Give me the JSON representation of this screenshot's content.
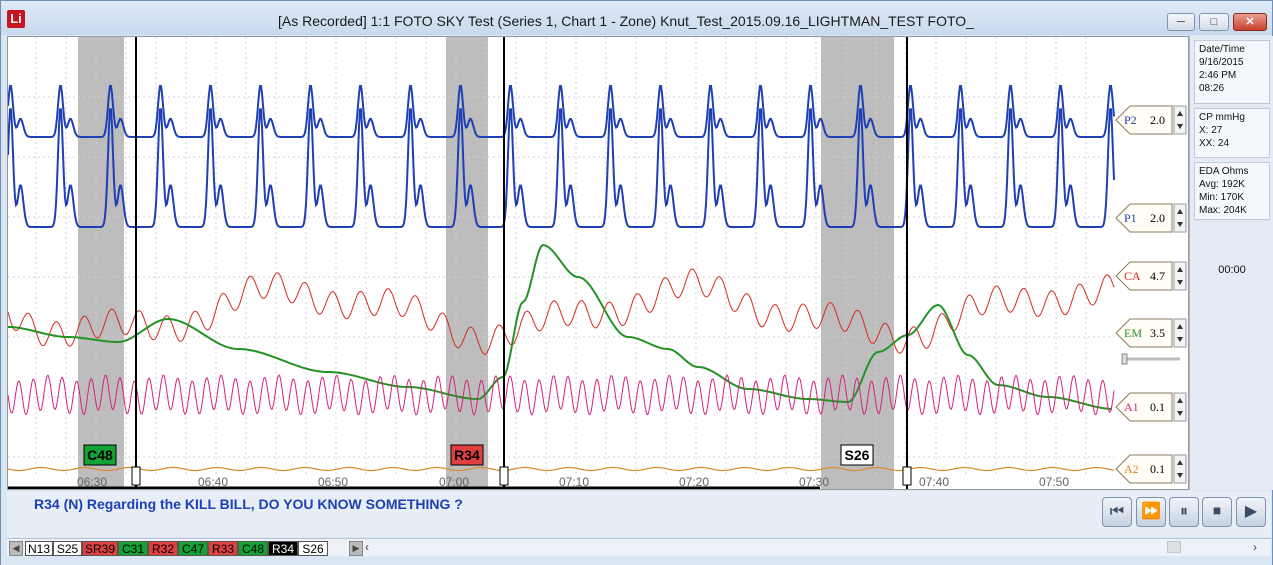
{
  "window": {
    "logo": "Li",
    "title": "[As Recorded] 1:1  FOTO SKY Test (Series 1, Chart 1 - Zone) Knut_Test_2015.09.16_LIGHTMAN_TEST FOTO_",
    "minimize_icon": "minimize-icon",
    "maximize_icon": "maximize-icon",
    "close_icon": "close-icon"
  },
  "time_axis": {
    "ticks": [
      "06:30",
      "06:40",
      "06:50",
      "07:00",
      "07:10",
      "07:20",
      "07:30",
      "07:40",
      "07:50"
    ]
  },
  "channels": [
    {
      "label": "P2",
      "value": "2.0",
      "color": "#1f3fb4"
    },
    {
      "label": "P1",
      "value": "2.0",
      "color": "#1f3fb4"
    },
    {
      "label": "CA",
      "value": "4.7",
      "color": "#d42a20"
    },
    {
      "label": "EM",
      "value": "3.5",
      "color": "#239325"
    },
    {
      "label": "A1",
      "value": "0.1",
      "color": "#d4237c"
    },
    {
      "label": "A2",
      "value": "0.1",
      "color": "#d98a2a"
    }
  ],
  "markers": [
    {
      "label": "C48",
      "bg": "#14a234",
      "fg": "#000000"
    },
    {
      "label": "R34",
      "bg": "#e04040",
      "fg": "#000000"
    },
    {
      "label": "S26",
      "bg": "#ffffff",
      "fg": "#000000"
    }
  ],
  "side_panel": {
    "datetime_title": "Date/Time",
    "date": "9/16/2015",
    "time": "2:46 PM",
    "elapsed": "08:26",
    "cp_title": "CP mmHg",
    "cp_x": "X:   27",
    "cp_xx": "XX: 24",
    "eda_title": "EDA Ohms",
    "eda_avg": "Avg: 192K",
    "eda_min": "Min:  170K",
    "eda_max": "Max: 204K",
    "timer": "00:00"
  },
  "question": "R34 (N) Regarding the KILL BILL, DO YOU KNOW SOMETHING ?",
  "media": {
    "rewind": "⏮",
    "fast_forward": "⏩",
    "pause": "⏸",
    "stop": "⏹",
    "play": "▶"
  },
  "tabs": [
    {
      "label": "N13",
      "bg": "#ffffff",
      "fg": "#000000"
    },
    {
      "label": "S25",
      "bg": "#ffffff",
      "fg": "#000000"
    },
    {
      "label": "SR39",
      "bg": "#e04040",
      "fg": "#000000"
    },
    {
      "label": "C31",
      "bg": "#14a234",
      "fg": "#000000"
    },
    {
      "label": "R32",
      "bg": "#e04040",
      "fg": "#000000"
    },
    {
      "label": "C47",
      "bg": "#14a234",
      "fg": "#000000"
    },
    {
      "label": "R33",
      "bg": "#e04040",
      "fg": "#000000"
    },
    {
      "label": "C48",
      "bg": "#14a234",
      "fg": "#000000"
    },
    {
      "label": "R34",
      "bg": "#000000",
      "fg": "#ffffff"
    },
    {
      "label": "S26",
      "bg": "#ffffff",
      "fg": "#000000"
    }
  ]
}
